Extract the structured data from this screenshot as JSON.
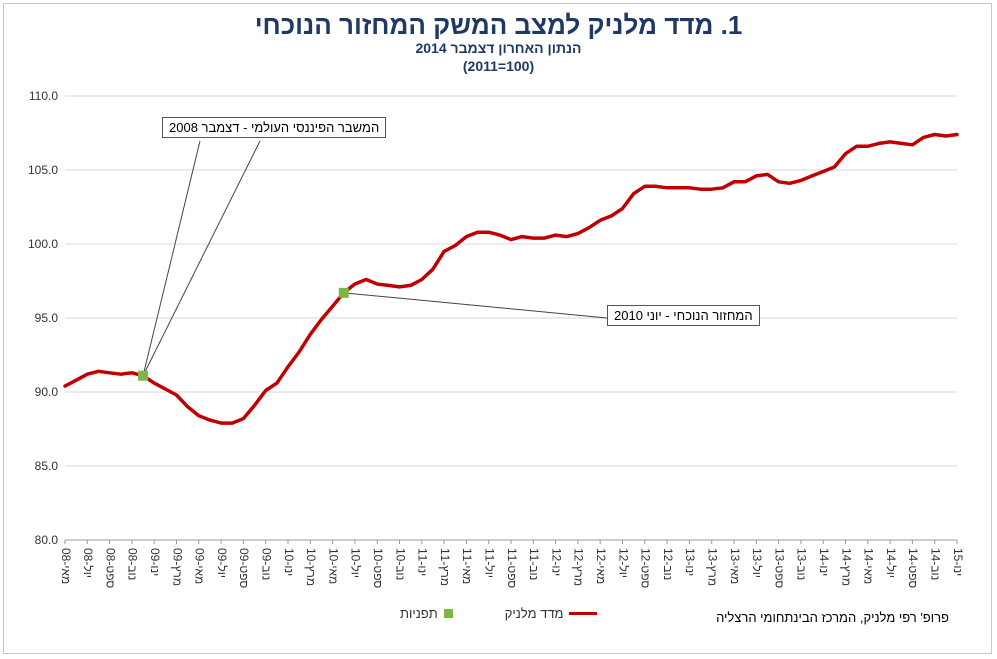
{
  "chart_data": {
    "type": "line",
    "title": "1. מדד מלניק למצב המשק המחזור הנוכחי",
    "subtitle": "הנתון האחרון דצמבר 2014",
    "subtitle2": "(100=2011)",
    "xlabel": "",
    "ylabel": "",
    "ylim": [
      80.0,
      110.0
    ],
    "yticks": [
      "80.0",
      "85.0",
      "90.0",
      "95.0",
      "100.0",
      "105.0",
      "110.0"
    ],
    "ytick_values": [
      80,
      85,
      90,
      95,
      100,
      105,
      110
    ],
    "x_tick_labels": [
      "מאי-08",
      "יול-08",
      "ספט-08",
      "נוב-08",
      "ינו-09",
      "מרץ-09",
      "מאי-09",
      "יול-09",
      "ספט-09",
      "נוב-09",
      "ינו-10",
      "מרץ-10",
      "מאי-10",
      "יול-10",
      "ספט-10",
      "נוב-10",
      "ינו-11",
      "מרץ-11",
      "מאי-11",
      "יול-11",
      "ספט-11",
      "נוב-11",
      "ינו-12",
      "מרץ-12",
      "מאי-12",
      "יול-12",
      "ספט-12",
      "נוב-12",
      "ינו-13",
      "מרץ-13",
      "מאי-13",
      "יול-13",
      "ספט-13",
      "נוב-13",
      "ינו-14",
      "מרץ-14",
      "מאי-14",
      "יול-14",
      "ספט-14",
      "נוב-14",
      "ינו-15"
    ],
    "grid": true,
    "legend_placement": "bottom",
    "series": [
      {
        "name": "מדד מלניק",
        "color": "#c00000",
        "type": "line",
        "values": [
          90.4,
          90.8,
          91.2,
          91.4,
          91.3,
          91.2,
          91.3,
          91.1,
          90.6,
          90.2,
          89.8,
          89.0,
          88.4,
          88.1,
          87.9,
          87.9,
          88.2,
          89.1,
          90.1,
          90.6,
          91.7,
          92.7,
          93.9,
          94.9,
          95.8,
          96.7,
          97.3,
          97.6,
          97.3,
          97.2,
          97.1,
          97.2,
          97.6,
          98.3,
          99.5,
          99.9,
          100.5,
          100.8,
          100.8,
          100.6,
          100.3,
          100.5,
          100.4,
          100.4,
          100.6,
          100.5,
          100.7,
          101.1,
          101.6,
          101.9,
          102.4,
          103.4,
          103.9,
          103.9,
          103.8,
          103.8,
          103.8,
          103.7,
          103.7,
          103.8,
          104.2,
          104.2,
          104.6,
          104.7,
          104.2,
          104.1,
          104.3,
          104.6,
          104.9,
          105.2,
          106.1,
          106.6,
          106.6,
          106.8,
          106.9,
          106.8,
          106.7,
          107.2,
          107.4,
          107.3,
          107.4
        ]
      },
      {
        "name": "תפניות",
        "color": "#7fb545",
        "type": "marker",
        "points": [
          {
            "index": 7,
            "value": 91.1
          },
          {
            "index": 25,
            "value": 96.7
          }
        ]
      }
    ],
    "annotations": [
      {
        "text": "המשבר הפיננסי העולמי - דצמבר 2008",
        "target_index": 7
      },
      {
        "text": "המחזור הנוכחי - יוני 2010",
        "target_index": 25
      }
    ]
  },
  "source": "פרופ' רפי מלניק, המרכז הבינתחומי הרצליה"
}
